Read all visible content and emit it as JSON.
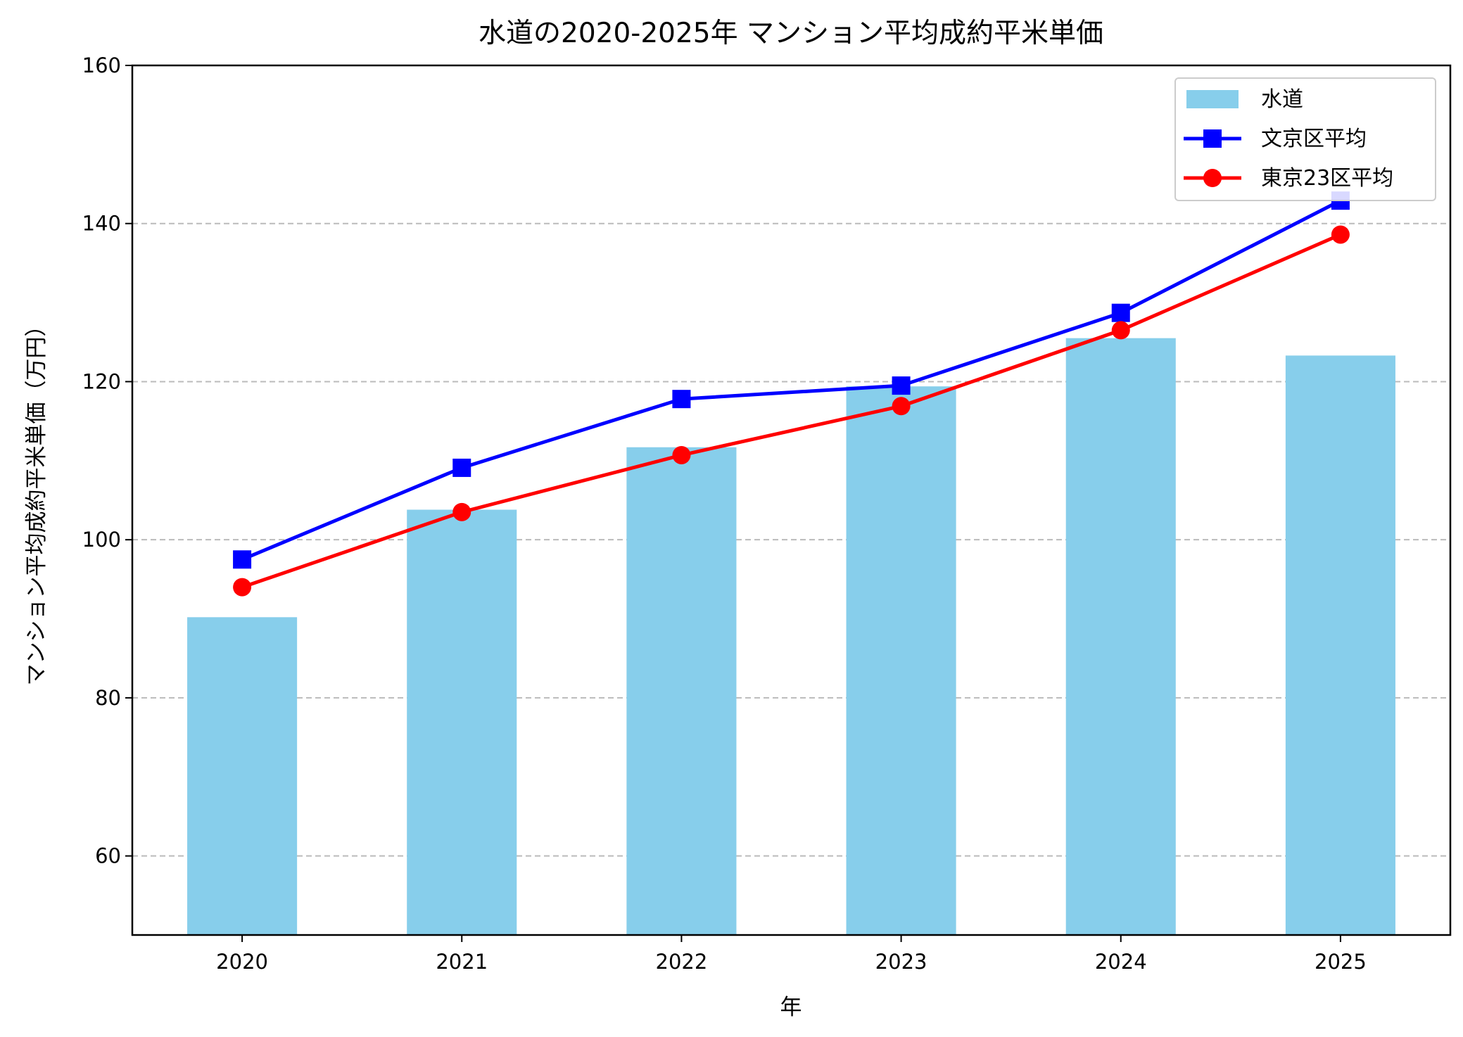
{
  "chart_data": {
    "type": "bar+line",
    "title": "水道の2020-2025年 マンション平均成約平米単価",
    "xlabel": "年",
    "ylabel": "マンション平均成約平米単価（万円）",
    "categories": [
      "2020",
      "2021",
      "2022",
      "2023",
      "2024",
      "2025"
    ],
    "ylim": [
      50,
      160
    ],
    "yticks": [
      "60",
      "80",
      "100",
      "120",
      "140",
      "160"
    ],
    "grid": "y-dashed",
    "legend_position": "top-right",
    "series": [
      {
        "name": "水道",
        "kind": "bar",
        "color": "#87ceeb",
        "values": [
          90.2,
          103.8,
          111.7,
          119.4,
          125.5,
          123.3
        ]
      },
      {
        "name": "文京区平均",
        "kind": "line",
        "marker": "square",
        "color": "#0000ff",
        "values": [
          97.5,
          109.1,
          117.8,
          119.5,
          128.7,
          142.9
        ]
      },
      {
        "name": "東京23区平均",
        "kind": "line",
        "marker": "circle",
        "color": "#ff0000",
        "values": [
          94.0,
          103.5,
          110.7,
          116.9,
          126.5,
          138.6
        ]
      }
    ]
  }
}
